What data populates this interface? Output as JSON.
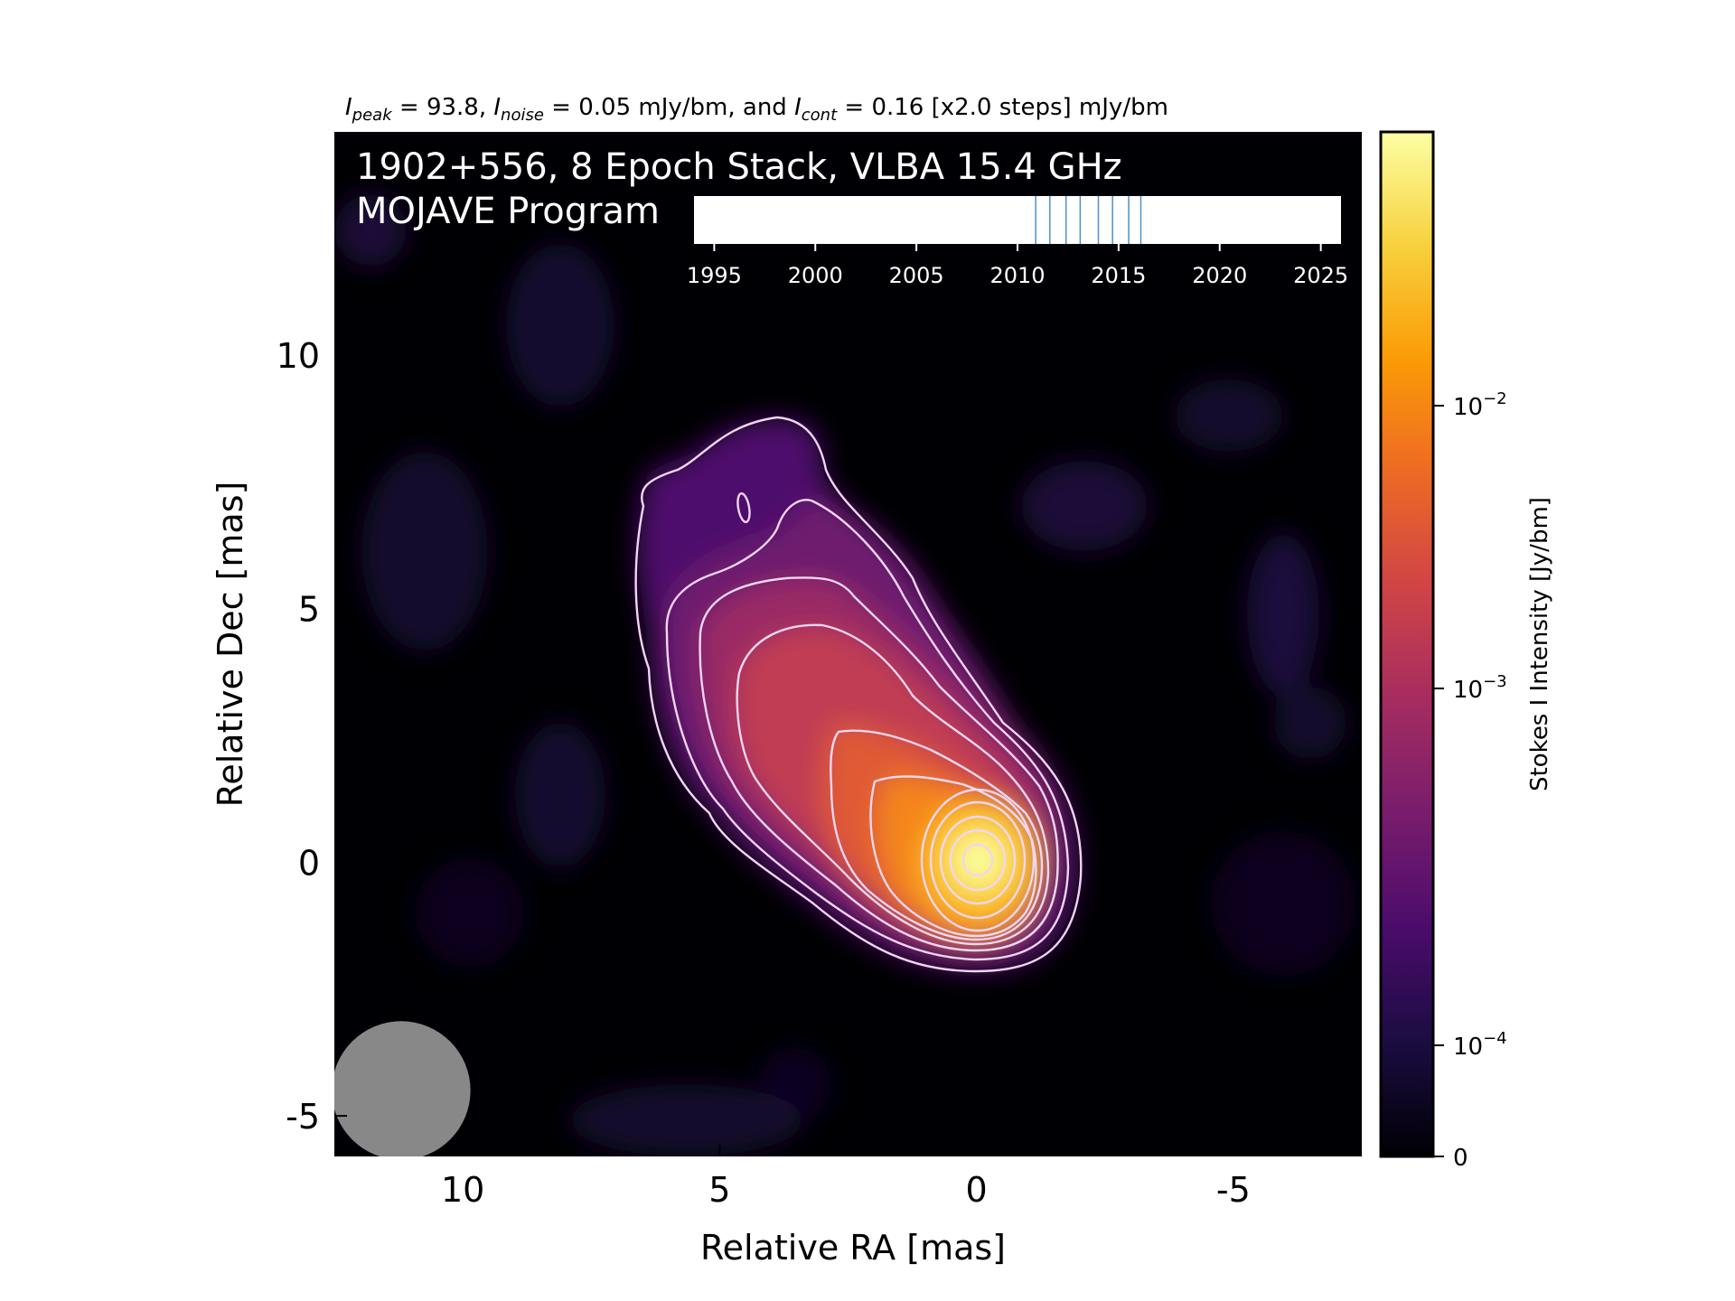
{
  "chart_data": {
    "type": "heatmap",
    "header": {
      "intro": "I",
      "peak_sub": "peak",
      "peak_val": " = 93.8, ",
      "noise_I": "I",
      "noise_sub": "noise",
      "noise_val": " = 0.05 mJy/bm, and ",
      "cont_I": "I",
      "cont_sub": "cont",
      "cont_val": " = 0.16 [x2.0 steps] mJy/bm"
    },
    "title_line1": "1902+556, 8 Epoch Stack, VLBA 15.4 GHz",
    "title_line2": "MOJAVE Program",
    "xlabel": "Relative RA [mas]",
    "ylabel": "Relative Dec [mas]",
    "xlim": [
      12.5,
      -7.5
    ],
    "ylim": [
      -5.8,
      14.4
    ],
    "xticks": [
      10,
      5,
      0,
      -5
    ],
    "yticks": [
      10,
      5,
      0,
      -5
    ],
    "colorbar": {
      "label": "Stokes I Intensity [Jy/bm]",
      "scale": "log",
      "ticks": [
        {
          "value": 0,
          "base": "0",
          "exp": ""
        },
        {
          "value": 0.0001,
          "base": "10",
          "exp": "−4"
        },
        {
          "value": 0.001,
          "base": "10",
          "exp": "−3"
        },
        {
          "value": 0.01,
          "base": "10",
          "exp": "−2"
        }
      ],
      "colors": [
        "#000004",
        "#1b0c41",
        "#4a0c6b",
        "#781c6d",
        "#a52c60",
        "#cf4446",
        "#ed6925",
        "#fb9b06",
        "#f7d13d",
        "#fcffa4"
      ]
    },
    "epoch_inset": {
      "xlim": [
        1994,
        2026
      ],
      "ticks": [
        1995,
        2000,
        2005,
        2010,
        2015,
        2020,
        2025
      ],
      "epochs": [
        2010.9,
        2011.6,
        2012.4,
        2013.1,
        2014.0,
        2014.7,
        2015.5,
        2016.1
      ],
      "line_color": "#4f8fc9"
    },
    "beam": {
      "ra": 11.2,
      "dec": -4.5,
      "major": 1.35,
      "minor": 1.35,
      "color": "#888888"
    },
    "contour_color": "#f0d6f2",
    "contour_levels_mJy": [
      0.16,
      0.32,
      0.64,
      1.28,
      2.56,
      5.12,
      10.24,
      20.48,
      40.96,
      81.92
    ]
  }
}
